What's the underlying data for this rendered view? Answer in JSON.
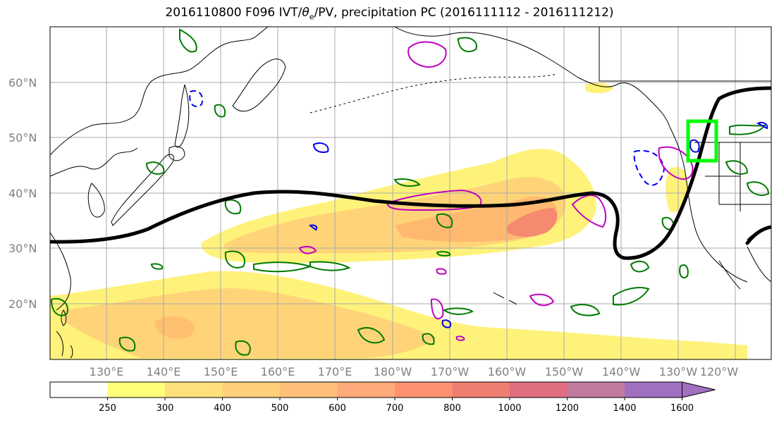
{
  "title": {
    "prefix": "2016110800 F096 IVT/",
    "theta": "θ",
    "sub": "e",
    "suffix": "/PV, precipitation PC (2016111112 - 2016111212)"
  },
  "lon_labels": [
    "130°E",
    "140°E",
    "150°E",
    "160°E",
    "170°E",
    "180°W",
    "170°W",
    "160°W",
    "150°W",
    "140°W",
    "130°W",
    "120°W"
  ],
  "lat_labels": [
    "60°N",
    "50°N",
    "40°N",
    "30°N",
    "20°N"
  ],
  "colorbar": {
    "labels": [
      "250",
      "300",
      "400",
      "500",
      "600",
      "700",
      "800",
      "1000",
      "1200",
      "1400",
      "1600"
    ],
    "colors": [
      "#ffffff",
      "#ffff7a",
      "#ffe07a",
      "#ffcf7a",
      "#ffbf7a",
      "#ffaa7a",
      "#ff9070",
      "#f07e70",
      "#e06e80",
      "#c07aa0",
      "#a070c0"
    ]
  },
  "colors": {
    "ivt_low": "#fff27a",
    "ivt_mid": "#ffc870",
    "ivt_high": "#ff9a70",
    "ivt_peak": "#f07e70",
    "pv_positive": "#007a00",
    "pv_negative": "#0000ee",
    "theta_e": "#c000c0",
    "jet_line": "#000000",
    "target_box": "#00ff00",
    "coast": "#000000",
    "grid": "#aaaaaa"
  }
}
